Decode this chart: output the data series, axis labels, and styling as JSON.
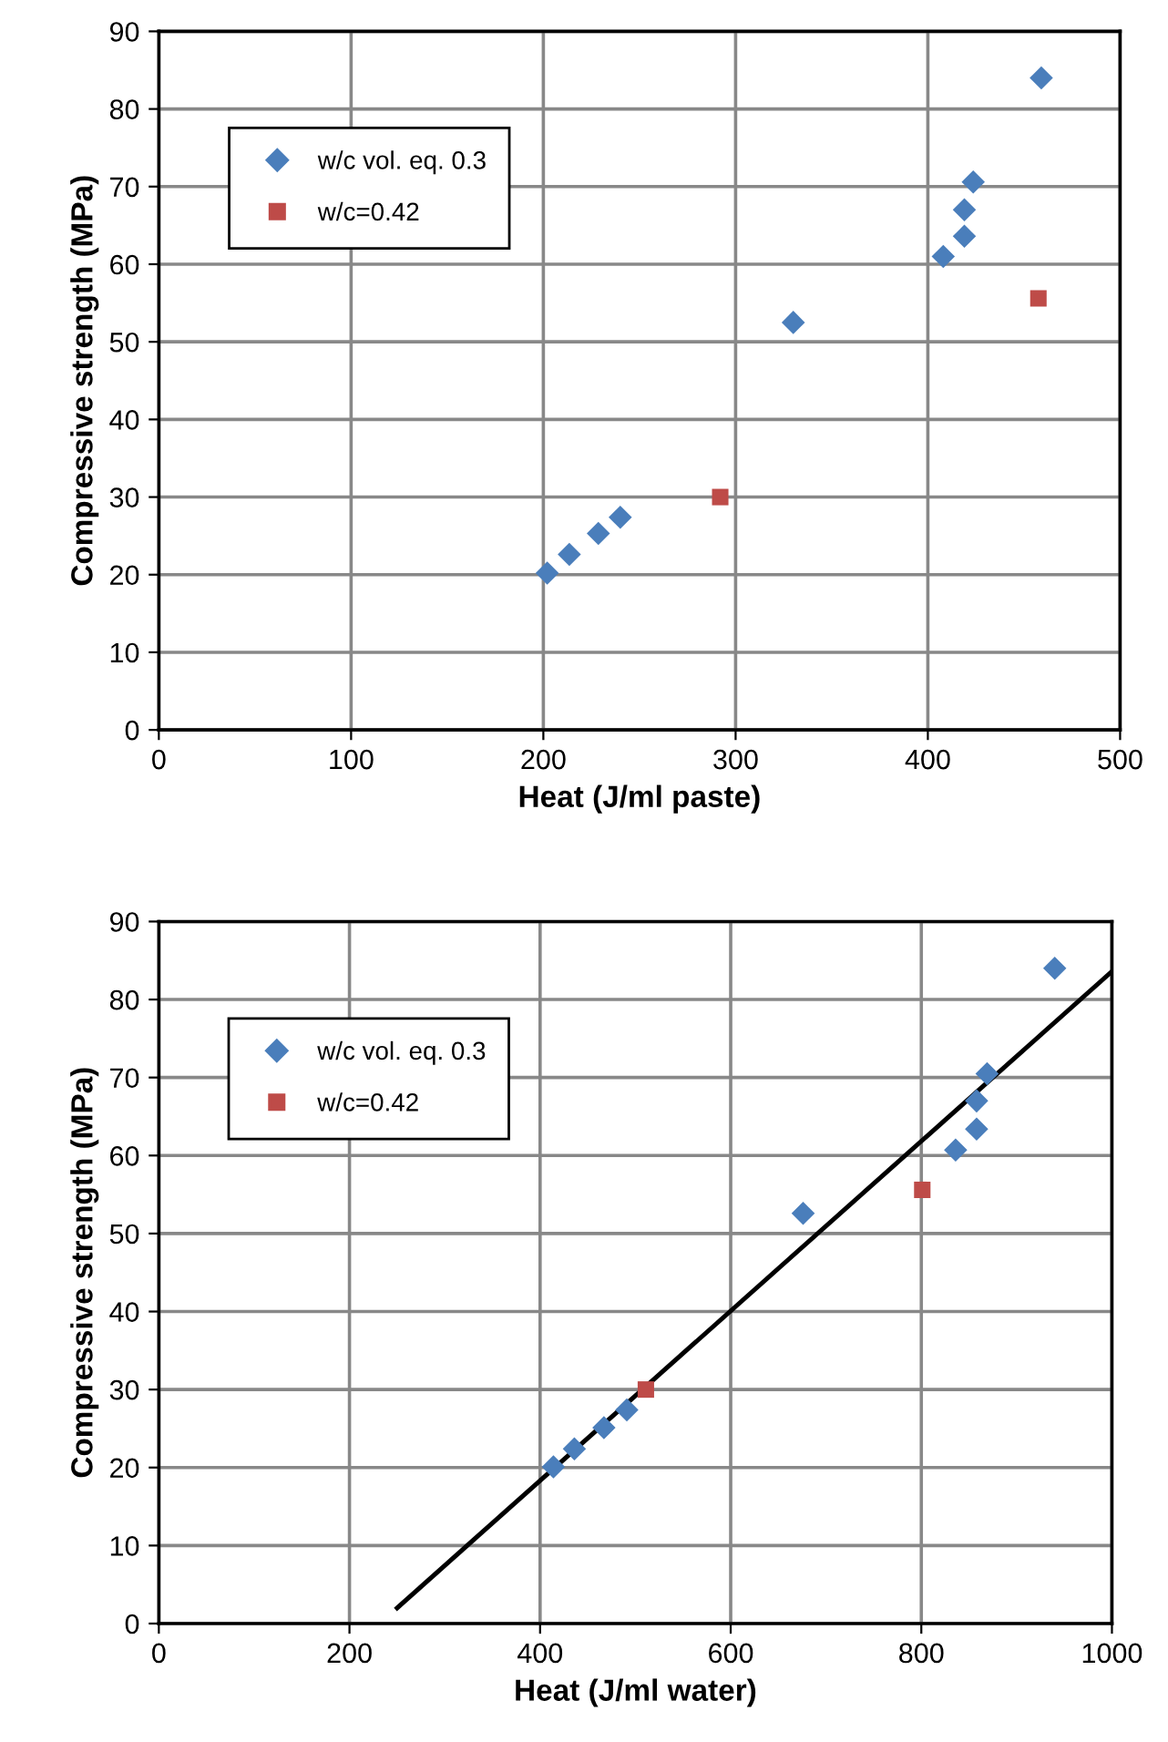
{
  "chart_data": [
    {
      "type": "scatter",
      "xlabel": "Heat (J/ml paste)",
      "ylabel": "Compressive strength (MPa)",
      "xlim": [
        0,
        500
      ],
      "ylim": [
        0,
        90
      ],
      "xticks": [
        0,
        100,
        200,
        300,
        400,
        500
      ],
      "yticks": [
        0,
        10,
        20,
        30,
        40,
        50,
        60,
        70,
        80,
        90
      ],
      "grid": true,
      "legend": "top left",
      "series": [
        {
          "name": "w/c vol. eq. 0.3",
          "color": "#4a7ebb",
          "marker": "diamond",
          "x": [
            202,
            213.5,
            228.6,
            240,
            330,
            408,
            419,
            419,
            423.6,
            459
          ],
          "values": [
            20.2,
            22.6,
            25.3,
            27.4,
            52.5,
            61.0,
            63.6,
            67.0,
            70.6,
            84.0
          ]
        },
        {
          "name": "w/c=0.42",
          "color": "#be4b48",
          "marker": "square",
          "x": [
            292,
            457.5
          ],
          "values": [
            30.0,
            55.6
          ]
        }
      ]
    },
    {
      "type": "scatter",
      "xlabel": "Heat (J/ml water)",
      "ylabel": "Compressive strength (MPa)",
      "xlim": [
        0,
        1000
      ],
      "ylim": [
        0,
        90
      ],
      "xticks": [
        0,
        200,
        400,
        600,
        800,
        1000
      ],
      "yticks": [
        0,
        10,
        20,
        30,
        40,
        50,
        60,
        70,
        80,
        90
      ],
      "grid": true,
      "legend": "top left",
      "series": [
        {
          "name": "w/c vol. eq. 0.3",
          "color": "#4a7ebb",
          "marker": "diamond",
          "x": [
            414,
            436,
            467,
            491,
            676,
            836,
            858,
            858,
            869,
            940
          ],
          "values": [
            20.1,
            22.4,
            25.1,
            27.4,
            52.6,
            60.7,
            63.4,
            67.0,
            70.5,
            84.0
          ]
        },
        {
          "name": "w/c=0.42",
          "color": "#be4b48",
          "marker": "square",
          "x": [
            511,
            801
          ],
          "values": [
            30.0,
            55.6
          ]
        },
        {
          "type": "line",
          "color": "#000000",
          "line_style": "solid",
          "marker": "none",
          "x": [
            250,
            1000
          ],
          "values": [
            2.0,
            83.6
          ]
        }
      ]
    }
  ]
}
